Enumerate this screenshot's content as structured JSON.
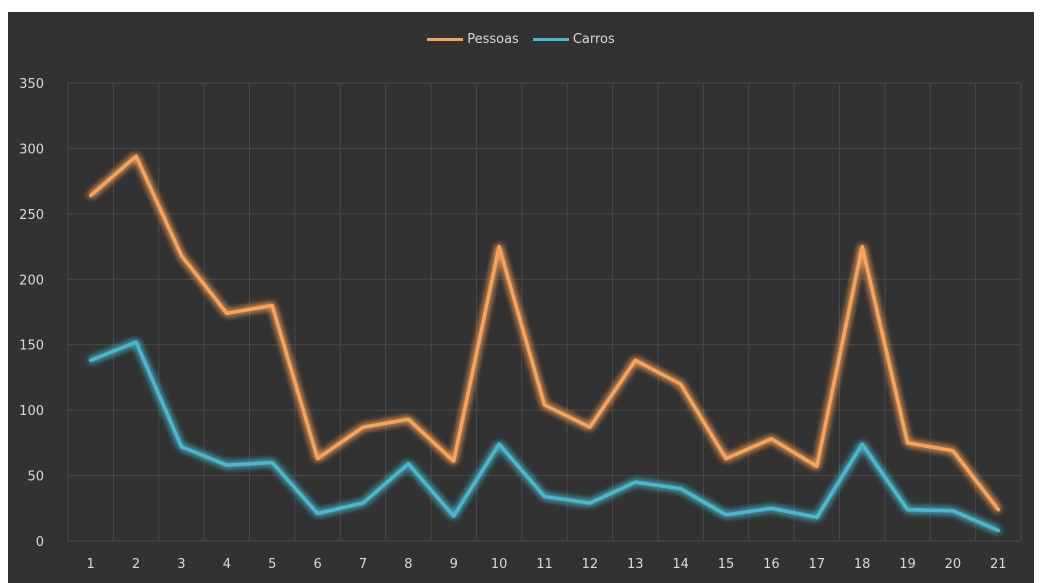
{
  "chart_data": {
    "type": "line",
    "title": "",
    "xlabel": "",
    "ylabel": "",
    "categories": [
      "1",
      "2",
      "3",
      "4",
      "5",
      "6",
      "7",
      "8",
      "9",
      "10",
      "11",
      "12",
      "13",
      "14",
      "15",
      "16",
      "17",
      "18",
      "19",
      "20",
      "21"
    ],
    "ylim": [
      0,
      350
    ],
    "yticks": [
      "0",
      "50",
      "100",
      "150",
      "200",
      "250",
      "300",
      "350"
    ],
    "grid": true,
    "legend_position": "top",
    "series": [
      {
        "name": "Pessoas",
        "color": "#f7a35a",
        "values": [
          264,
          294,
          218,
          174,
          180,
          63,
          87,
          93,
          61,
          225,
          104,
          87,
          138,
          120,
          63,
          78,
          57,
          225,
          75,
          69,
          24
        ]
      },
      {
        "name": "Carros",
        "color": "#4ab8cc",
        "values": [
          138,
          152,
          72,
          58,
          60,
          21,
          29,
          59,
          19,
          74,
          34,
          29,
          45,
          40,
          20,
          25,
          18,
          74,
          24,
          23,
          8
        ]
      }
    ]
  }
}
